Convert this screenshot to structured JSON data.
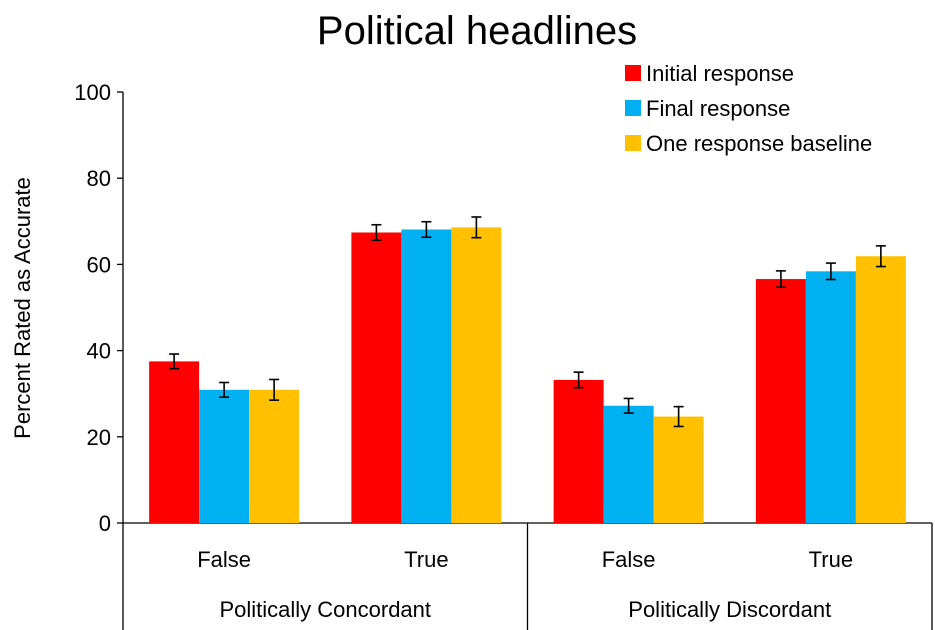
{
  "chart_data": {
    "type": "bar",
    "title": "Political headlines",
    "ylabel": "Percent Rated as Accurate",
    "xlabel": "",
    "ylim": [
      0,
      100
    ],
    "yticks": [
      0,
      20,
      40,
      60,
      80,
      100
    ],
    "grid": false,
    "legend_position": "top-right",
    "groups": [
      {
        "label": "Politically Concordant",
        "categories": [
          "False",
          "True"
        ]
      },
      {
        "label": "Politically Discordant",
        "categories": [
          "False",
          "True"
        ]
      }
    ],
    "series": [
      {
        "name": "Initial response",
        "color": "#FF0000",
        "values": [
          37.5,
          67.4,
          33.2,
          56.6
        ],
        "error": [
          1.7,
          1.8,
          1.8,
          1.9
        ]
      },
      {
        "name": "Final response",
        "color": "#00B0F0",
        "values": [
          30.9,
          68.1,
          27.2,
          58.4
        ],
        "error": [
          1.7,
          1.8,
          1.7,
          1.9
        ]
      },
      {
        "name": "One response baseline",
        "color": "#FFC000",
        "values": [
          30.9,
          68.6,
          24.7,
          61.9
        ],
        "error": [
          2.4,
          2.4,
          2.3,
          2.4
        ]
      }
    ]
  }
}
